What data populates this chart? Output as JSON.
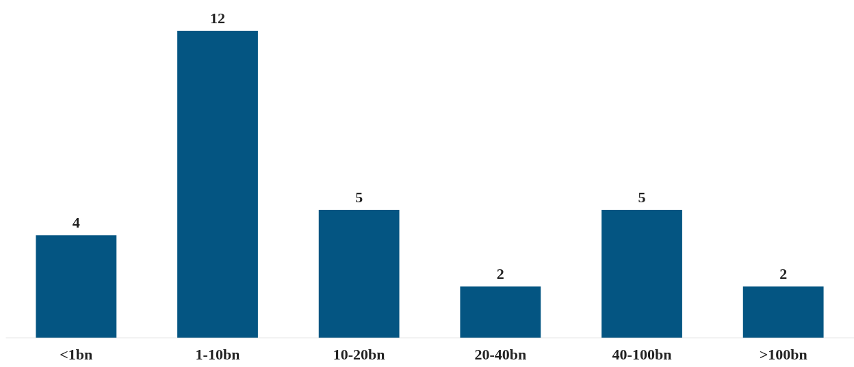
{
  "chart_data": {
    "type": "bar",
    "categories": [
      "<1bn",
      "1-10bn",
      "10-20bn",
      "20-40bn",
      "40-100bn",
      ">100bn"
    ],
    "values": [
      4,
      12,
      5,
      2,
      5,
      2
    ],
    "color": "#045582",
    "data_labels": true
  }
}
